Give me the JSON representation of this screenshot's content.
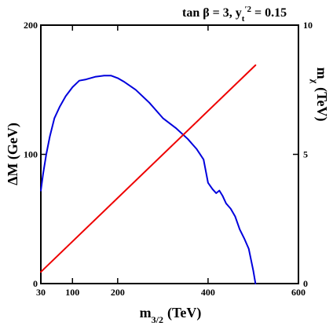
{
  "chart_data": {
    "type": "line",
    "annotation": "tan β = 3, y",
    "annotation_sup": "′2",
    "annotation_sub": "t",
    "annotation_tail": "= 0.15",
    "xlabel": "m",
    "xlabel_sub": "3/2",
    "xlabel_unit": "(TeV)",
    "ylabel_left": "ΔM (GeV)",
    "ylabel_right": "m",
    "ylabel_right_sub": "χ",
    "ylabel_right_unit": "(TeV)",
    "xlim": [
      30,
      600
    ],
    "ylim_left": [
      0,
      200
    ],
    "ylim_right": [
      0,
      10
    ],
    "x_ticks": [
      30,
      100,
      200,
      400,
      600
    ],
    "y_ticks_left": [
      0,
      100,
      200
    ],
    "y_ticks_right": [
      0,
      5,
      10
    ],
    "grid": false,
    "series": [
      {
        "axis": "left",
        "color": "#0000dd",
        "x": [
          30,
          35,
          42,
          50,
          60,
          72,
          85,
          100,
          115,
          130,
          150,
          170,
          185,
          200,
          215,
          240,
          270,
          300,
          330,
          355,
          375,
          390,
          400,
          410,
          418,
          425,
          432,
          440,
          450,
          460,
          470,
          480,
          490,
          500,
          505
        ],
        "values": [
          72,
          85,
          100,
          114,
          128,
          137,
          145,
          152,
          157,
          158,
          160,
          161,
          161,
          159,
          156,
          150,
          140,
          128,
          120,
          112,
          104,
          96,
          78,
          73,
          70,
          72,
          68,
          62,
          58,
          52,
          42,
          35,
          27,
          10,
          0
        ]
      },
      {
        "axis": "right",
        "color": "#ee0000",
        "x": [
          30,
          505
        ],
        "values": [
          0.45,
          8.45
        ]
      }
    ]
  }
}
